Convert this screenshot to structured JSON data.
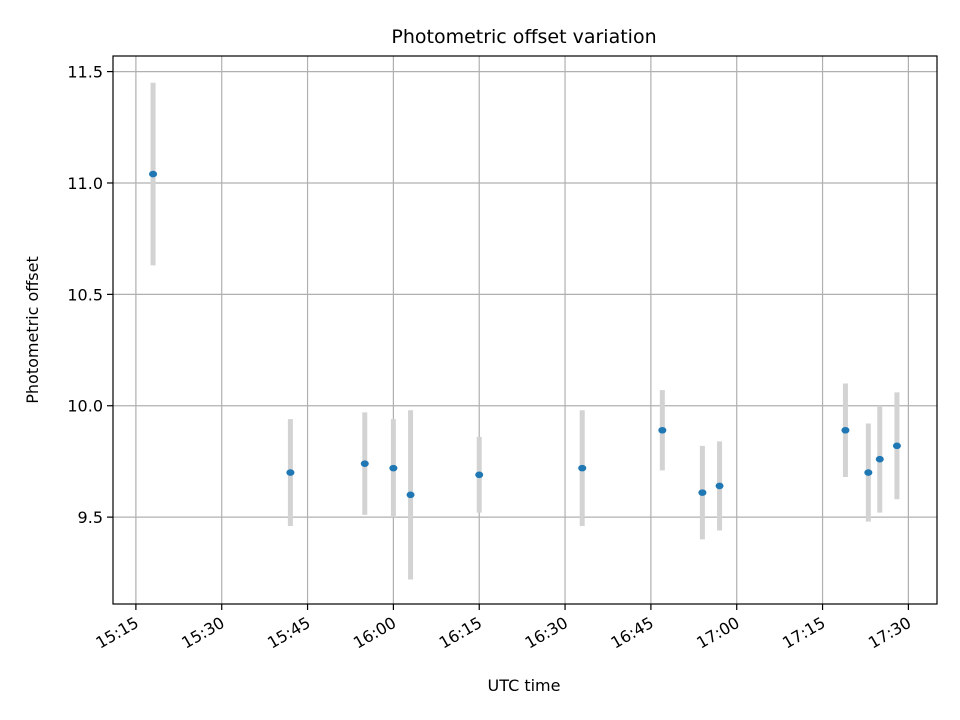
{
  "chart_data": {
    "type": "scatter",
    "title": "Photometric offset variation",
    "xlabel": "UTC time",
    "ylabel": "Photometric offset",
    "x_ticks": [
      "15:15",
      "15:30",
      "15:45",
      "16:00",
      "16:15",
      "16:30",
      "16:45",
      "17:00",
      "17:15",
      "17:30"
    ],
    "y_ticks": [
      9.5,
      10.0,
      10.5,
      11.0,
      11.5
    ],
    "xlim": [
      "15:11",
      "17:35"
    ],
    "ylim": [
      9.11,
      11.57
    ],
    "grid": true,
    "marker_color": "#1f77b4",
    "errorbar_color": "#d3d3d3",
    "points": [
      {
        "x": "15:18",
        "y": 11.04,
        "err": 0.41
      },
      {
        "x": "15:42",
        "y": 9.7,
        "err": 0.24
      },
      {
        "x": "15:55",
        "y": 9.74,
        "err": 0.23
      },
      {
        "x": "15:60",
        "y": 9.72,
        "err": 0.22
      },
      {
        "x": "16:03",
        "y": 9.6,
        "err": 0.38
      },
      {
        "x": "16:15",
        "y": 9.69,
        "err": 0.17
      },
      {
        "x": "16:33",
        "y": 9.72,
        "err": 0.26
      },
      {
        "x": "16:47",
        "y": 9.89,
        "err": 0.18
      },
      {
        "x": "16:54",
        "y": 9.61,
        "err": 0.21
      },
      {
        "x": "16:57",
        "y": 9.64,
        "err": 0.2
      },
      {
        "x": "17:19",
        "y": 9.89,
        "err": 0.21
      },
      {
        "x": "17:23",
        "y": 9.7,
        "err": 0.22
      },
      {
        "x": "17:25",
        "y": 9.76,
        "err": 0.24
      },
      {
        "x": "17:28",
        "y": 9.82,
        "err": 0.24
      }
    ]
  }
}
